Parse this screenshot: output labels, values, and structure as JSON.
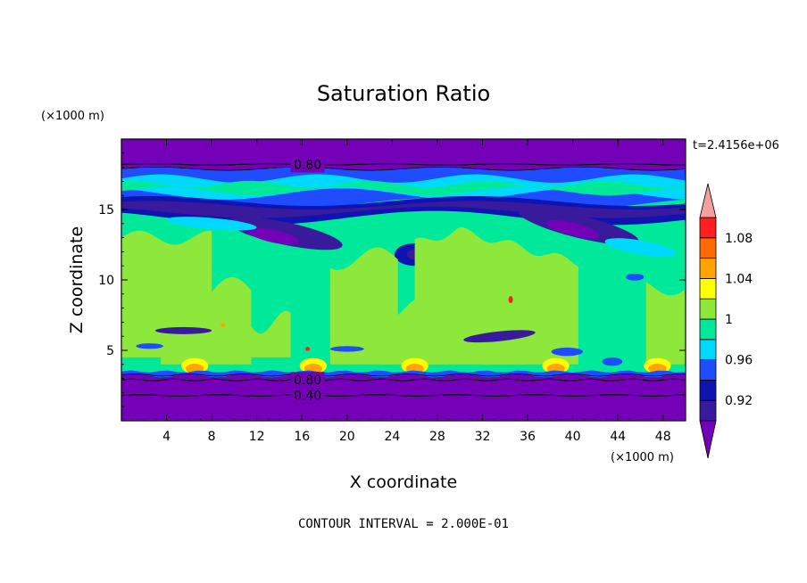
{
  "chart_data": {
    "type": "heatmap",
    "title": "Saturation Ratio",
    "xlabel": "X coordinate",
    "ylabel": "Z coordinate",
    "x_unit": "(×1000 m)",
    "y_unit": "(×1000 m)",
    "xlim": [
      0,
      50
    ],
    "ylim": [
      0,
      20
    ],
    "x_ticks": [
      4,
      8,
      12,
      16,
      20,
      24,
      28,
      32,
      36,
      40,
      44,
      48
    ],
    "y_ticks": [
      5,
      10,
      15
    ],
    "time_label": "t=2.4156e+06",
    "footer": "CONTOUR INTERVAL = 2.000E-01",
    "contour_labels": [
      {
        "text": "0.80",
        "x": 16.5,
        "z": 18.2
      },
      {
        "text": "0.80",
        "x": 16.5,
        "z": 2.9
      },
      {
        "text": "0.40",
        "x": 16.5,
        "z": 1.8
      }
    ],
    "colorbar": {
      "levels": [
        0.9,
        0.92,
        0.94,
        0.96,
        0.98,
        1.0,
        1.02,
        1.04,
        1.06,
        1.08,
        1.1
      ],
      "tick_labels": [
        "0.92",
        "0.96",
        "1",
        "1.04",
        "1.08"
      ],
      "tick_values": [
        0.92,
        0.96,
        1.0,
        1.04,
        1.08
      ],
      "colors": [
        "#3a1a9c",
        "#0d14b0",
        "#1f4cff",
        "#00d9ff",
        "#00e89a",
        "#8ee83c",
        "#ffff00",
        "#ffa400",
        "#ff6a00",
        "#ff1f1f"
      ],
      "under_color": "#7400b8",
      "over_color": "#f4a0a0"
    },
    "field_colors": {
      "very_dry": "#7400b8",
      "dry": "#3a1a9c",
      "dark_blue": "#0d14b0",
      "blue": "#1f4cff",
      "cyan": "#00d9ff",
      "sea_green": "#00e89a",
      "lime": "#8ee83c",
      "yellow": "#ffff00",
      "orange": "#ffa400",
      "red": "#ff1f1f"
    }
  }
}
